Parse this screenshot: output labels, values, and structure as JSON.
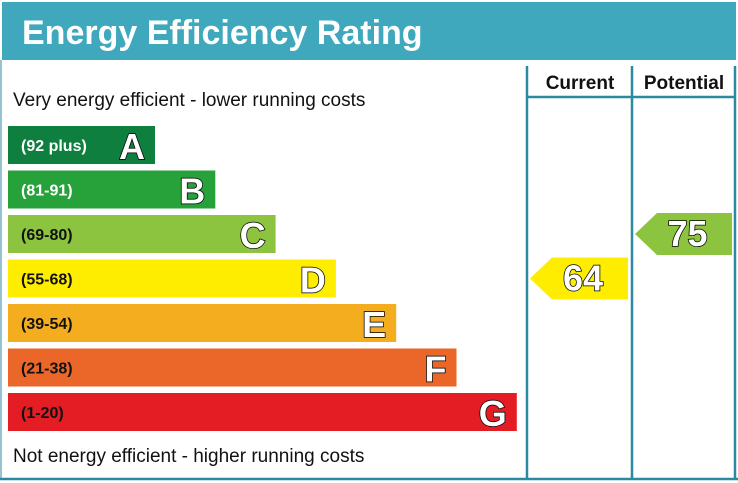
{
  "chart_data": {
    "type": "bar",
    "title": "Energy Efficiency Rating",
    "top_note": "Very energy efficient - lower running costs",
    "bottom_note": "Not energy efficient - higher running costs",
    "columns": [
      "Current",
      "Potential"
    ],
    "bands": [
      {
        "letter": "A",
        "range": "(92 plus)",
        "color": "#0f7f3f",
        "text_color": "#ffffff"
      },
      {
        "letter": "B",
        "range": "(81-91)",
        "color": "#27a23b",
        "text_color": "#ffffff"
      },
      {
        "letter": "C",
        "range": "(69-80)",
        "color": "#8cc43f",
        "text_color": "#111111"
      },
      {
        "letter": "D",
        "range": "(55-68)",
        "color": "#ffed00",
        "text_color": "#111111"
      },
      {
        "letter": "E",
        "range": "(39-54)",
        "color": "#f4ad1f",
        "text_color": "#111111"
      },
      {
        "letter": "F",
        "range": "(21-38)",
        "color": "#ea6629",
        "text_color": "#111111"
      },
      {
        "letter": "G",
        "range": "(1-20)",
        "color": "#e31d23",
        "text_color": "#111111"
      }
    ],
    "current": {
      "value": 64,
      "band": "D",
      "color": "#ffed00"
    },
    "potential": {
      "value": 75,
      "band": "C",
      "color": "#8cc43f"
    },
    "header_color": "#3fa8bd",
    "frame_color": "#2b8aa0"
  }
}
